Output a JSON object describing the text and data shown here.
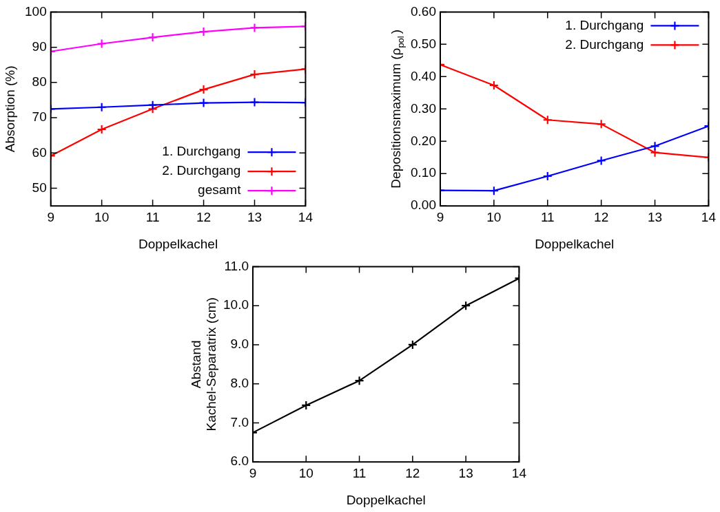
{
  "chart_data": [
    {
      "type": "line",
      "xlabel": "Doppelkachel",
      "ylabel": "Absorption (%)",
      "x": [
        9,
        10,
        11,
        12,
        13,
        14
      ],
      "xlim": [
        9,
        14
      ],
      "xticks": [
        9,
        10,
        11,
        12,
        13,
        14
      ],
      "ylim": [
        45,
        100
      ],
      "yticks": [
        50,
        60,
        70,
        80,
        90,
        100
      ],
      "grid": false,
      "legend": "bottom right",
      "series": [
        {
          "name": "1. Durchgang",
          "color": "#0000ff",
          "marker": "cross",
          "values": [
            72.5,
            73,
            73.6,
            74.2,
            74.4,
            74.3
          ]
        },
        {
          "name": "2. Durchgang",
          "color": "#ff0000",
          "marker": "cross",
          "values": [
            59.2,
            66.7,
            72.5,
            78,
            82.3,
            83.8
          ]
        },
        {
          "name": "gesamt",
          "color": "#ff00ff",
          "marker": "cross",
          "values": [
            88.8,
            91,
            92.8,
            94.4,
            95.5,
            95.9
          ]
        }
      ]
    },
    {
      "type": "line",
      "xlabel": "Doppelkachel",
      "ylabel": "Depositionsmaximum (ρ$_{pol}$)",
      "x": [
        9,
        10,
        11,
        12,
        13,
        14
      ],
      "xlim": [
        9,
        14
      ],
      "xticks": [
        9,
        10,
        11,
        12,
        13,
        14
      ],
      "ylim": [
        0,
        0.6
      ],
      "yticks": [
        {
          "value": 0,
          "label": "0.00"
        },
        {
          "value": 0.1,
          "label": "0.10"
        },
        {
          "value": 0.2,
          "label": "0.20"
        },
        {
          "value": 0.3,
          "label": "0.30"
        },
        {
          "value": 0.4,
          "label": "0.40"
        },
        {
          "value": 0.5,
          "label": "0.50"
        },
        {
          "value": 0.6,
          "label": "0.60"
        }
      ],
      "grid": false,
      "legend": "top right",
      "series": [
        {
          "name": "1. Durchgang",
          "color": "#0000ff",
          "marker": "cross",
          "values": [
            0.048,
            0.047,
            0.092,
            0.14,
            0.185,
            0.247
          ]
        },
        {
          "name": "2. Durchgang",
          "color": "#ff0000",
          "marker": "cross",
          "values": [
            0.437,
            0.373,
            0.266,
            0.253,
            0.165,
            0.15
          ]
        }
      ]
    },
    {
      "type": "line",
      "xlabel": "Doppelkachel",
      "ylabel": "Abstand\nKachel-Separatrix (cm)",
      "x": [
        9,
        10,
        11,
        12,
        13,
        14
      ],
      "xlim": [
        9,
        14
      ],
      "xticks": [
        9,
        10,
        11,
        12,
        13,
        14
      ],
      "ylim": [
        6,
        11
      ],
      "yticks": [
        {
          "value": 6,
          "label": "6.0"
        },
        {
          "value": 7,
          "label": "7.0"
        },
        {
          "value": 8,
          "label": "8.0"
        },
        {
          "value": 9,
          "label": "9.0"
        },
        {
          "value": 10,
          "label": "10.0"
        },
        {
          "value": 11,
          "label": "11.0"
        }
      ],
      "grid": false,
      "legend": false,
      "series": [
        {
          "color": "#000000",
          "marker": "cross",
          "values": [
            6.75,
            7.45,
            8.08,
            9.0,
            10.0,
            10.7
          ]
        }
      ]
    }
  ]
}
